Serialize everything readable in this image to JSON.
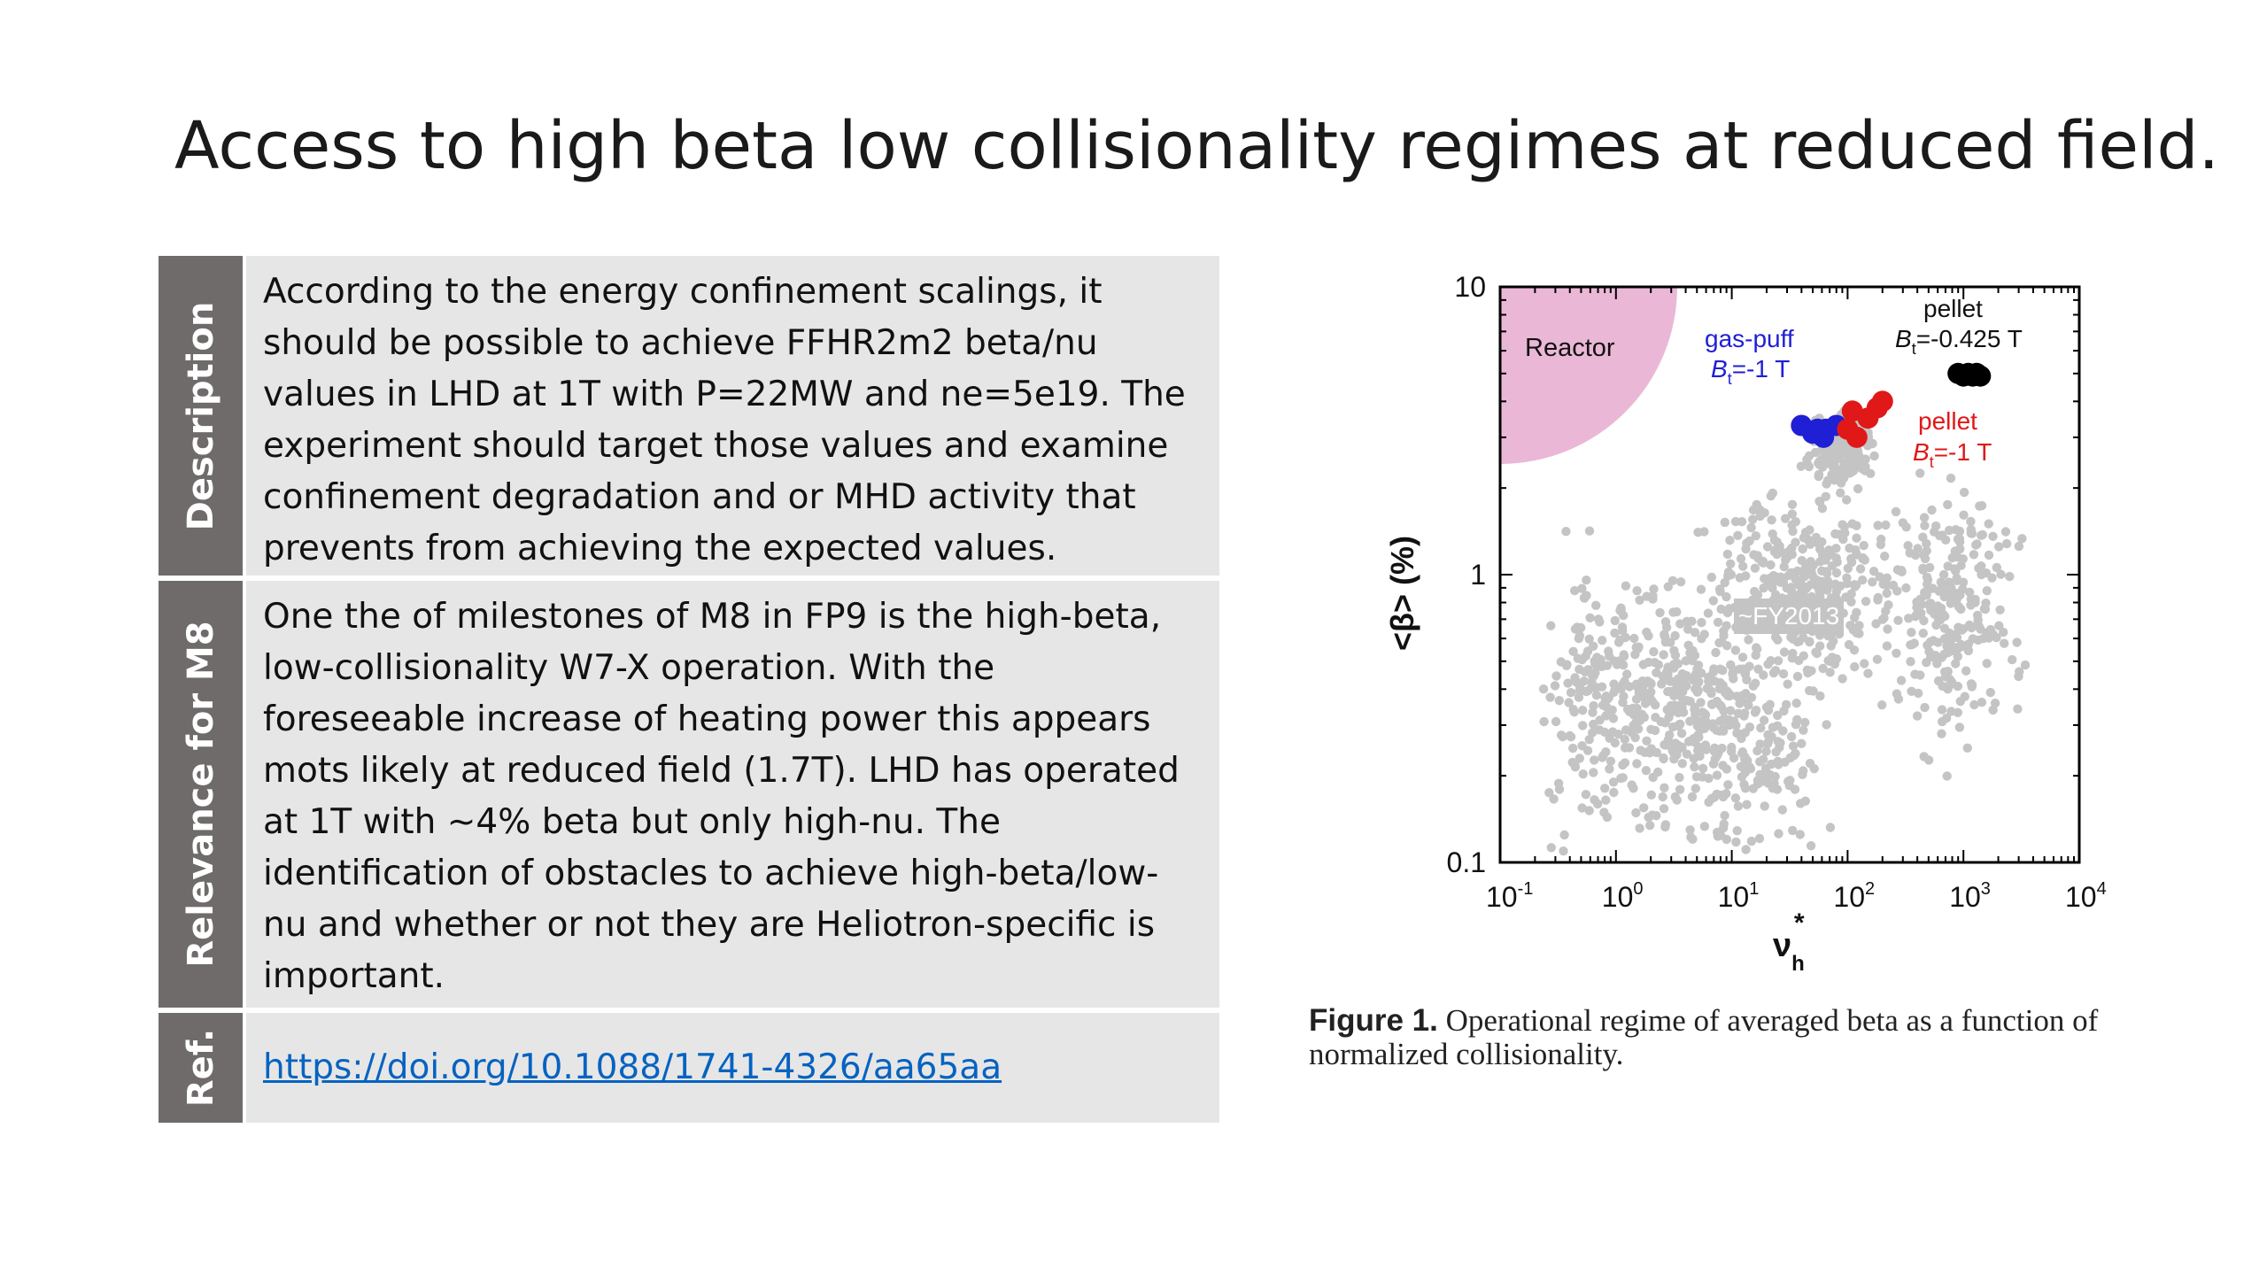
{
  "slide": {
    "title": "Access to high beta low collisionality regimes at reduced field."
  },
  "table": {
    "rows": [
      {
        "label": "Description",
        "text": "According to the energy confinement scalings, it should be possible to achieve FFHR2m2 beta/nu values in LHD at 1T with P=22MW and ne=5e19. The experiment should target those values and examine confinement degradation and or MHD activity that prevents from achieving the expected values."
      },
      {
        "label": "Relevance for M8",
        "text": "One the of milestones of M8 in FP9 is the high-beta, low-collisionality W7-X operation. With the foreseeable increase of heating power this appears mots likely at reduced field (1.7T). LHD has operated at 1T with ~4% beta but only high-nu. The identification of obstacles to achieve high-beta/low-nu and whether or not they are Heliotron-specific is important."
      },
      {
        "label": "Ref.",
        "link": "https://doi.org/10.1088/1741-4326/aa65aa"
      }
    ]
  },
  "figure": {
    "caption_label": "Figure 1.",
    "caption_text": "Operational regime of averaged beta as a function of normalized collisionality."
  },
  "chart_data": {
    "type": "scatter",
    "xscale": "log",
    "yscale": "log",
    "xlim": [
      0.1,
      10000
    ],
    "ylim": [
      0.1,
      10
    ],
    "xticks": [
      {
        "base": "10",
        "exp": "-1"
      },
      {
        "base": "10",
        "exp": "0"
      },
      {
        "base": "10",
        "exp": "1"
      },
      {
        "base": "10",
        "exp": "2"
      },
      {
        "base": "10",
        "exp": "3"
      },
      {
        "base": "10",
        "exp": "4"
      }
    ],
    "yticks": [
      "0.1",
      "1",
      "10"
    ],
    "xlabel_main": "ν",
    "xlabel_sub": "h",
    "xlabel_sup": "*",
    "ylabel": "<β> (%)",
    "grid": false,
    "reactor_label": "Reactor",
    "fy_label": "~FY2013",
    "annotations": {
      "gaspuff_line1": "gas-puff",
      "gaspuff_line2_B": "B",
      "gaspuff_line2_sub": "t",
      "gaspuff_line2_rest": "=-1 T",
      "pellet425_line1": "pellet",
      "pellet425_line2_B": "B",
      "pellet425_line2_sub": "t",
      "pellet425_line2_rest": "=-0.425 T",
      "pellet1_line1": "pellet",
      "pellet1_line2_B": "B",
      "pellet1_line2_sub": "t",
      "pellet1_line2_rest": "=-1 T"
    },
    "colors": {
      "gaspuff": "#1f1fd6",
      "pellet1": "#e01818",
      "pellet425": "#000000",
      "database": "#c4c4c4",
      "reactor": "#eab8d6"
    },
    "series": [
      {
        "name": "gas-puff",
        "color": "#1f1fd6",
        "points": [
          [
            40,
            3.3
          ],
          [
            55,
            3.2
          ],
          [
            65,
            3.2
          ],
          [
            80,
            3.3
          ],
          [
            62,
            3.0
          ],
          [
            50,
            3.1
          ]
        ]
      },
      {
        "name": "pellet",
        "color": "#e01818",
        "points": [
          [
            100,
            3.2
          ],
          [
            120,
            3.0
          ],
          [
            110,
            3.7
          ],
          [
            150,
            3.5
          ],
          [
            200,
            4.0
          ],
          [
            180,
            3.8
          ]
        ]
      },
      {
        "name": "pellet",
        "color": "#000000",
        "points": [
          [
            900,
            5.0
          ],
          [
            1000,
            4.9
          ],
          [
            1100,
            5.0
          ],
          [
            1200,
            4.9
          ],
          [
            1300,
            5.0
          ],
          [
            1400,
            4.9
          ]
        ]
      }
    ]
  }
}
